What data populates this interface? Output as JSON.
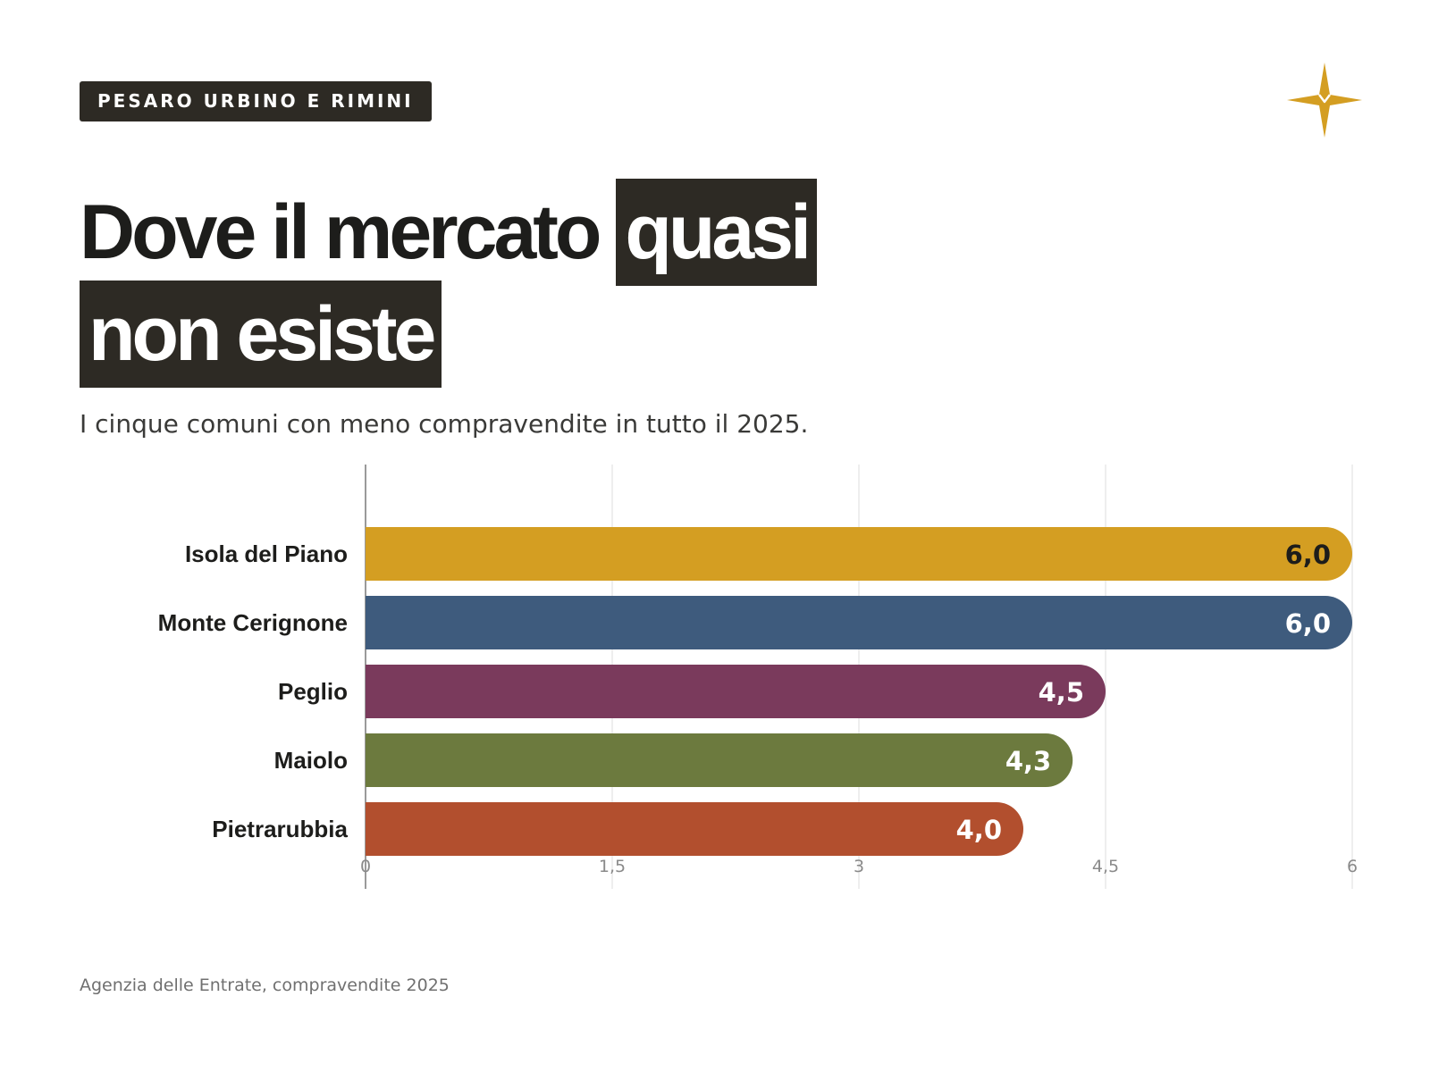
{
  "header": {
    "tag": "PESARO URBINO E RIMINI",
    "title_part1": "Dove il mercato ",
    "title_highlight1": "quasi",
    "title_highlight2": "non esiste",
    "subtitle": "I cinque comuni con meno compravendite in tutto il 2025."
  },
  "logo": {
    "icon": "compass-star-icon",
    "color": "#d49e22"
  },
  "chart_data": {
    "type": "bar",
    "orientation": "horizontal",
    "title": "",
    "xlabel": "",
    "ylabel": "",
    "categories": [
      "Isola del Piano",
      "Monte Cerignone",
      "Peglio",
      "Maiolo",
      "Pietrarubbia"
    ],
    "values": [
      6.0,
      6.0,
      4.5,
      4.3,
      4.0
    ],
    "value_labels": [
      "6,0",
      "6,0",
      "4,5",
      "4,3",
      "4,0"
    ],
    "colors": [
      "#d49e22",
      "#3e5b7d",
      "#7a3a5c",
      "#6c7a3e",
      "#b24f2e"
    ],
    "label_colors": [
      "#1d1d1b",
      "#ffffff",
      "#ffffff",
      "#ffffff",
      "#ffffff"
    ],
    "xlim": [
      0,
      6
    ],
    "xticks": [
      0,
      1.5,
      3,
      4.5,
      6
    ],
    "xtick_labels": [
      "0",
      "1,5",
      "3",
      "4,5",
      "6"
    ],
    "grid": true,
    "legend": "none"
  },
  "footer": {
    "source": "Agenzia delle Entrate, compravendite 2025"
  }
}
